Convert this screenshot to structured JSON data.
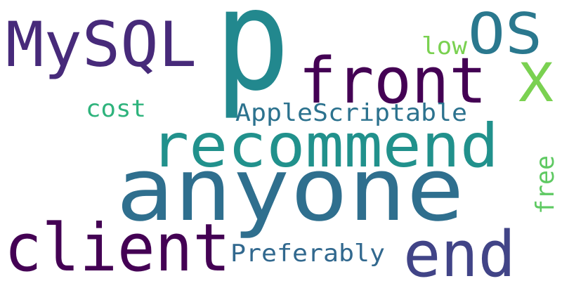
{
  "word_cloud": {
    "words": [
      {
        "text": "anyone",
        "color": "#2f6f8e"
      },
      {
        "text": "p",
        "color": "#22888e"
      },
      {
        "text": "recommend",
        "color": "#21918c"
      },
      {
        "text": "client",
        "color": "#440154"
      },
      {
        "text": "MySQL",
        "color": "#472a7a"
      },
      {
        "text": "front",
        "color": "#440154"
      },
      {
        "text": "end",
        "color": "#414487"
      },
      {
        "text": "OS",
        "color": "#2a788e"
      },
      {
        "text": "X",
        "color": "#7ad151"
      },
      {
        "text": "AppleScriptable",
        "color": "#2c728e"
      },
      {
        "text": "Preferably",
        "color": "#31688e"
      },
      {
        "text": "cost",
        "color": "#2eb37c"
      },
      {
        "text": "low",
        "color": "#7ad151"
      },
      {
        "text": "free",
        "color": "#5ec962"
      }
    ]
  }
}
